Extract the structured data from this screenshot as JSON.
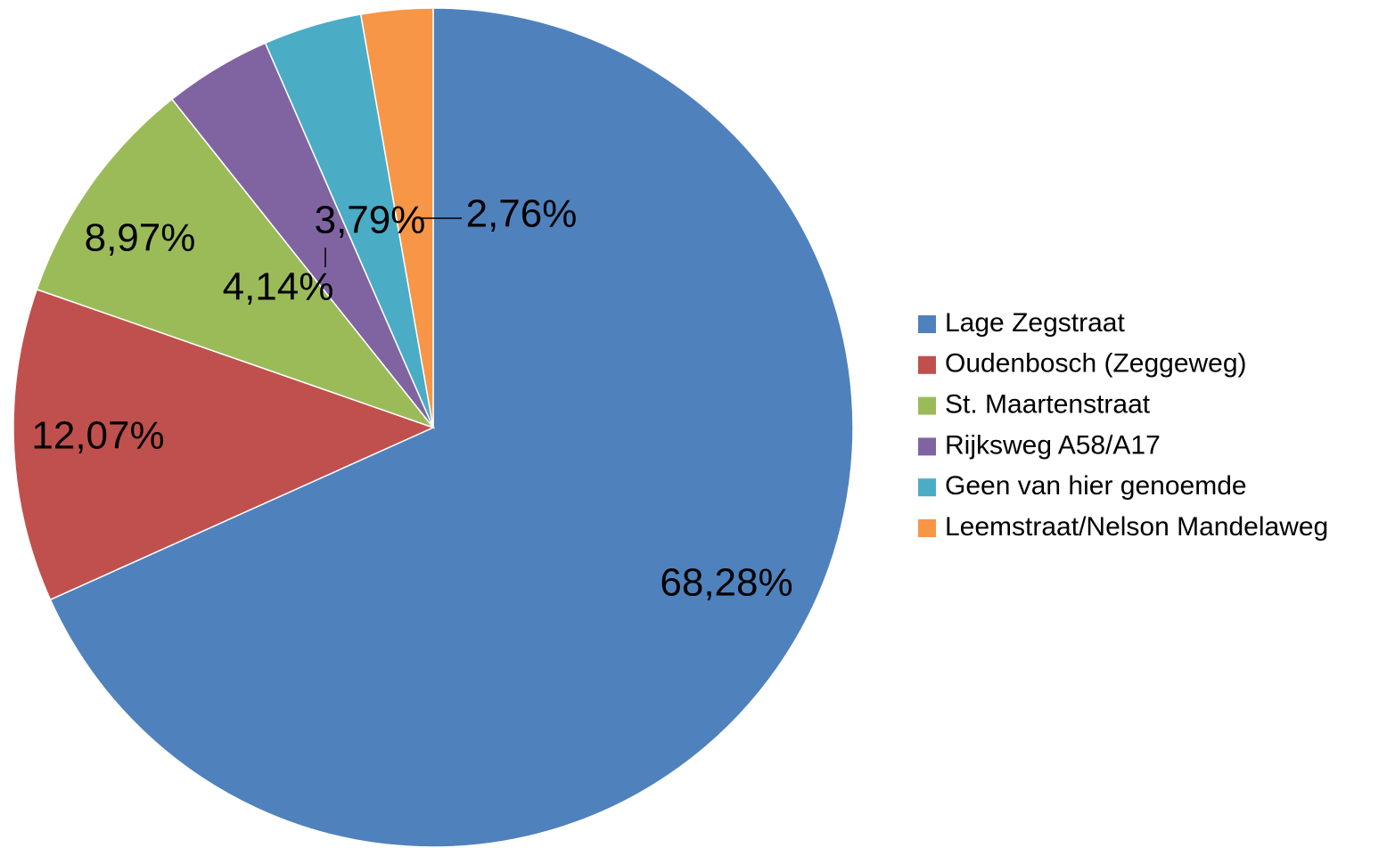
{
  "chart_data": {
    "type": "pie",
    "categories": [
      "Lage Zegstraat",
      "Oudenbosch (Zeggeweg)",
      "St. Maartenstraat",
      "Rijksweg A58/A17",
      "Geen van hier genoemde",
      "Leemstraat/Nelson Mandelaweg"
    ],
    "values": [
      68.28,
      12.07,
      8.97,
      4.14,
      3.79,
      2.76
    ],
    "value_labels": [
      "68,28%",
      "12,07%",
      "8,97%",
      "4,14%",
      "3,79%",
      "2,76%"
    ],
    "colors": [
      "#4f81bd",
      "#c0504d",
      "#9bbb59",
      "#8064a2",
      "#4bacc6",
      "#f79646"
    ],
    "legend": "right"
  }
}
